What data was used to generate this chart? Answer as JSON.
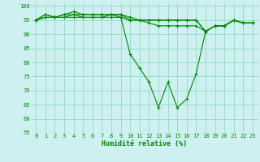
{
  "xlabel": "Humidité relative (%)",
  "background_color": "#cef0f0",
  "grid_color": "#99ddcc",
  "line_color": "#008800",
  "ylim": [
    55,
    101
  ],
  "xlim": [
    -0.5,
    23.5
  ],
  "yticks": [
    55,
    60,
    65,
    70,
    75,
    80,
    85,
    90,
    95,
    100
  ],
  "xticks": [
    0,
    1,
    2,
    3,
    4,
    5,
    6,
    7,
    8,
    9,
    10,
    11,
    12,
    13,
    14,
    15,
    16,
    17,
    18,
    19,
    20,
    21,
    22,
    23
  ],
  "series": [
    [
      95,
      97,
      96,
      97,
      97,
      97,
      97,
      97,
      97,
      97,
      95,
      95,
      95,
      95,
      95,
      95,
      95,
      95,
      91,
      93,
      93,
      95,
      94,
      94
    ],
    [
      95,
      97,
      96,
      97,
      98,
      97,
      97,
      97,
      97,
      97,
      96,
      95,
      95,
      95,
      95,
      95,
      95,
      95,
      91,
      93,
      93,
      95,
      94,
      94
    ],
    [
      95,
      96,
      96,
      96,
      97,
      96,
      96,
      96,
      97,
      96,
      95,
      95,
      94,
      93,
      93,
      93,
      93,
      93,
      91,
      93,
      93,
      95,
      94,
      94
    ],
    [
      95,
      96,
      96,
      96,
      96,
      96,
      96,
      96,
      96,
      96,
      83,
      78,
      73,
      64,
      73,
      64,
      67,
      76,
      91,
      93,
      93,
      95,
      94,
      94
    ]
  ]
}
